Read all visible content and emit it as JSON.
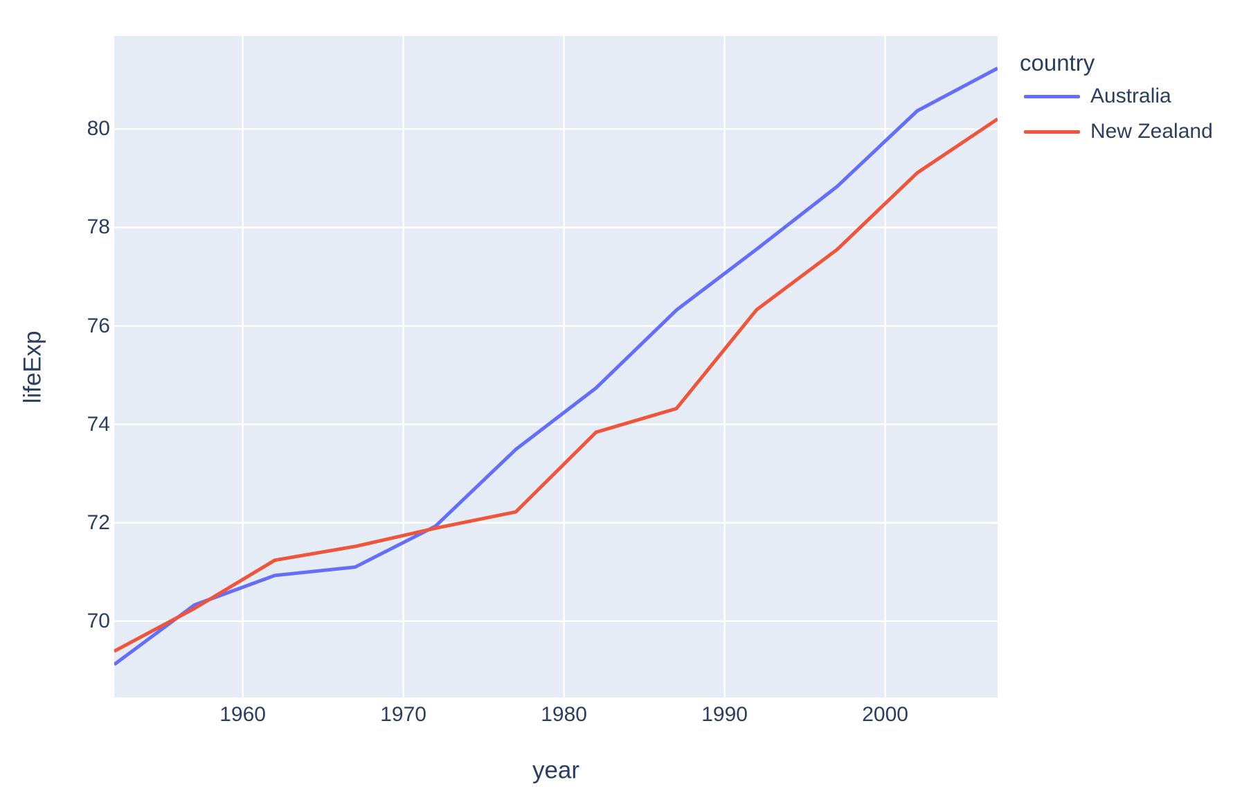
{
  "chart_data": {
    "type": "line",
    "title": "",
    "xlabel": "year",
    "ylabel": "lifeExp",
    "legend_title": "country",
    "legend_position": "right",
    "grid": true,
    "x": [
      1952,
      1957,
      1962,
      1967,
      1972,
      1977,
      1982,
      1987,
      1992,
      1997,
      2002,
      2007
    ],
    "series": [
      {
        "name": "Australia",
        "color": "#636EFA",
        "values": [
          69.12,
          70.33,
          70.93,
          71.1,
          71.93,
          73.49,
          74.74,
          76.32,
          77.56,
          78.83,
          80.37,
          81.235
        ]
      },
      {
        "name": "New Zealand",
        "color": "#EF553B",
        "values": [
          69.39,
          70.26,
          71.24,
          71.52,
          71.89,
          72.22,
          73.84,
          74.32,
          76.33,
          77.55,
          79.11,
          80.204
        ]
      }
    ],
    "xlim": [
      1952,
      2007
    ],
    "ylim": [
      68.45,
      81.89
    ],
    "x_ticks": [
      1960,
      1970,
      1980,
      1990,
      2000
    ],
    "y_ticks": [
      70,
      72,
      74,
      76,
      78,
      80
    ],
    "colors": {
      "plot_bg": "#E5ECF6",
      "grid": "#FFFFFF",
      "text": "#2A3F5F",
      "paper_bg": "#FFFFFF"
    }
  }
}
